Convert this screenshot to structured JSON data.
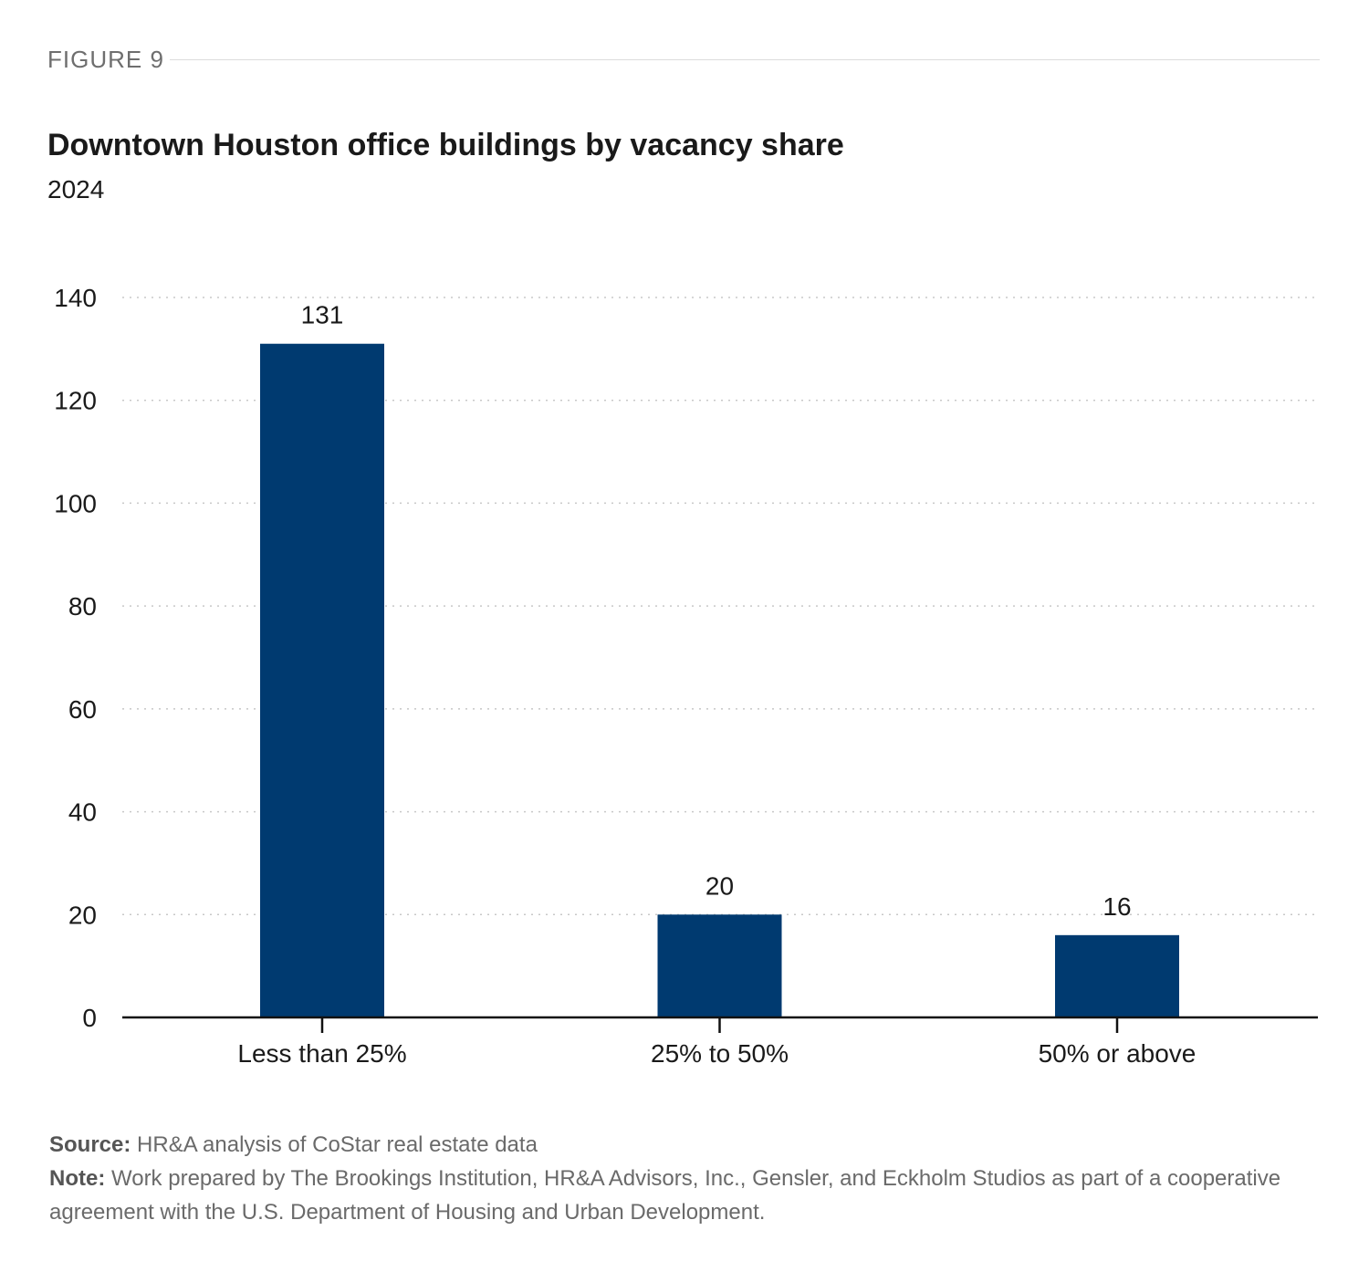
{
  "figure_label": "FIGURE 9",
  "footer": {
    "source_label": "Source:",
    "source_text": "HR&A analysis of CoStar real estate data",
    "note_label": "Note:",
    "note_text": "Work prepared by The Brookings Institution, HR&A Advisors, Inc., Gensler, and Eckholm Studios as part of a cooperative agreement with the U.S. Department of Housing and Urban Development."
  },
  "colors": {
    "bar": "#003a70",
    "grid": "#c8c8c8",
    "axis": "#111111"
  },
  "chart_data": {
    "type": "bar",
    "title": "Downtown Houston office buildings by vacancy share",
    "subtitle": "2024",
    "categories": [
      "Less than 25%",
      "25% to 50%",
      "50% or above"
    ],
    "values": [
      131,
      20,
      16
    ],
    "data_labels": [
      "131",
      "20",
      "16"
    ],
    "xlabel": "",
    "ylabel": "",
    "ylim": [
      0,
      140
    ],
    "yticks": [
      0,
      20,
      40,
      60,
      80,
      100,
      120,
      140
    ],
    "grid": true,
    "legend": "none"
  }
}
